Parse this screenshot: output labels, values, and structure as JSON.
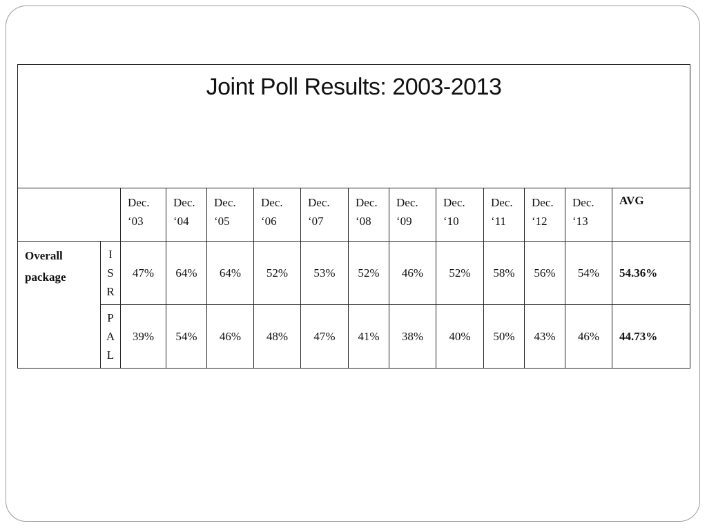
{
  "title": "Joint Poll Results: 2003-2013",
  "columns": [
    "Dec.\n‘03",
    "Dec.\n‘04",
    "Dec.\n‘05",
    "Dec.\n‘06",
    "Dec.\n‘07",
    "Dec.\n‘08",
    "Dec.\n‘09",
    "Dec.\n‘10",
    "Dec.\n‘11",
    "Dec.\n‘12",
    "Dec.\n‘13"
  ],
  "avg_header": "AVG",
  "category": "Overall package",
  "rows": [
    {
      "group": "I\nS\nR",
      "values": [
        "47%",
        "64%",
        "64%",
        "52%",
        "53%",
        "52%",
        "46%",
        "52%",
        "58%",
        "56%",
        "54%"
      ],
      "avg": "54.36%"
    },
    {
      "group": "P\nA\nL",
      "values": [
        "39%",
        "54%",
        "46%",
        "48%",
        "47%",
        "41%",
        "38%",
        "40%",
        "50%",
        "43%",
        "46%"
      ],
      "avg": "44.73%"
    }
  ]
}
